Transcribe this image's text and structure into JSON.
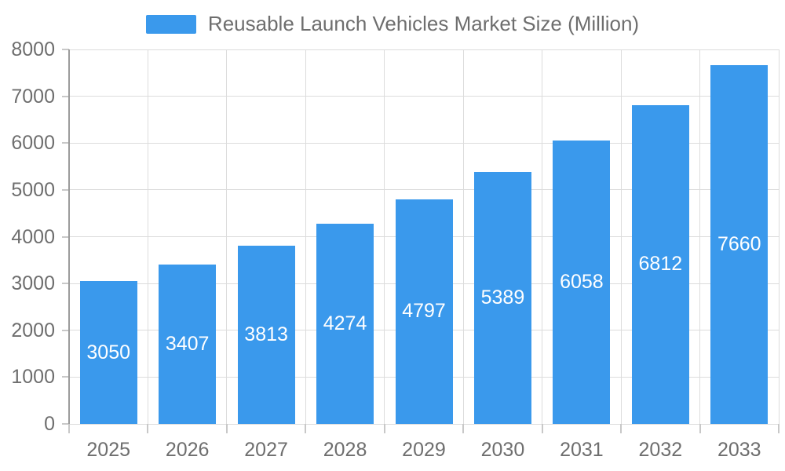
{
  "chart_data": {
    "type": "bar",
    "title": "Reusable Launch Vehicles Market Size (Million)",
    "categories": [
      "2025",
      "2026",
      "2027",
      "2028",
      "2029",
      "2030",
      "2031",
      "2032",
      "2033"
    ],
    "values": [
      3050,
      3407,
      3813,
      4274,
      4797,
      5389,
      6058,
      6812,
      7660
    ],
    "xlabel": "",
    "ylabel": "",
    "ylim": [
      0,
      8000
    ],
    "ytick_interval": 1000,
    "yticks": [
      0,
      1000,
      2000,
      3000,
      4000,
      5000,
      6000,
      7000,
      8000
    ],
    "grid": true,
    "legend_position": "top-center",
    "bar_labels_visible": true,
    "colors": {
      "bar": "#3A99EC",
      "bar_label": "#FFFFFF",
      "text": "#6E6E6E",
      "grid": "#DCDCDC",
      "axis_line": "#9B9B9B",
      "tick": "#C8C8C8",
      "background": "#FFFFFF"
    }
  }
}
